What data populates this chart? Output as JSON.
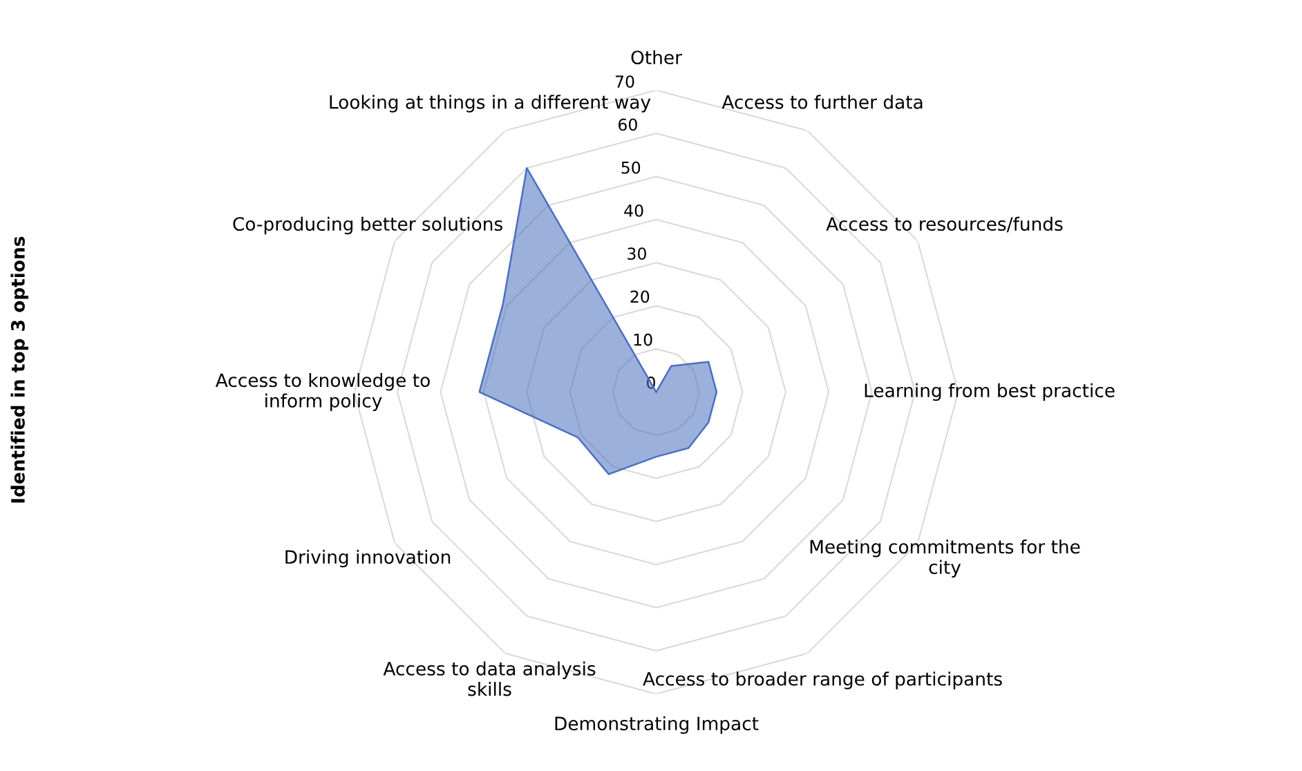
{
  "chart_data": {
    "type": "radar",
    "ylabel": "Identified in top 3 options",
    "categories": [
      "Other",
      "Access to further data",
      "Access to resources/funds",
      "Learning from best practice",
      "Meeting commitments for the\ncity",
      "Access to broader range of participants",
      "Demonstrating Impact",
      "Access to data analysis\nskills",
      "Driving innovation",
      "Access to knowledge to\ninform policy",
      "Co-producing better solutions",
      "Looking at things in a different way"
    ],
    "series": [
      {
        "color": "#4a6fc0",
        "values": [
          0,
          7,
          14,
          14,
          14,
          15,
          15,
          22,
          21,
          41,
          41,
          60
        ]
      }
    ],
    "ylim": [
      0,
      70
    ],
    "yticks": [
      0,
      10,
      20,
      30,
      40,
      50,
      60,
      70
    ],
    "grid": true,
    "legend": false
  }
}
